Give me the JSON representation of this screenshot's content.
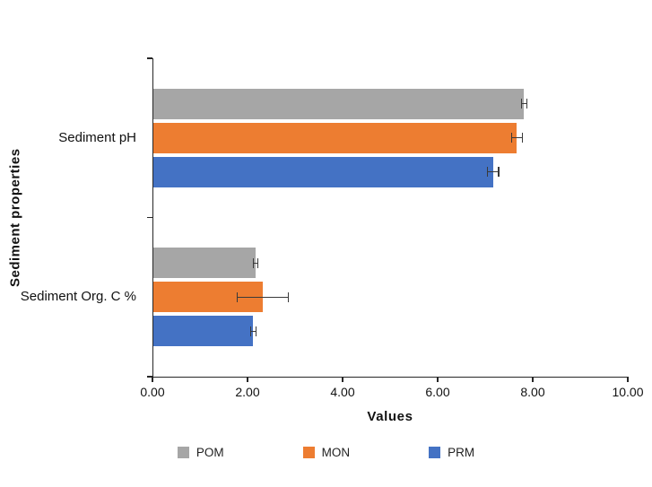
{
  "chart_data": {
    "type": "bar",
    "orientation": "horizontal",
    "title": "",
    "xlabel": "Values",
    "ylabel": "Sediment properties",
    "categories": [
      "Sediment pH",
      "Sediment Org. C %"
    ],
    "series": [
      {
        "name": "POM",
        "color": "#a6a6a6",
        "values": [
          7.8,
          2.15
        ],
        "errors": [
          0.07,
          0.06
        ]
      },
      {
        "name": "MON",
        "color": "#ed7d31",
        "values": [
          7.65,
          2.3
        ],
        "errors": [
          0.13,
          0.55
        ]
      },
      {
        "name": "PRM",
        "color": "#4472c4",
        "values": [
          7.15,
          2.1
        ],
        "errors": [
          0.13,
          0.07
        ]
      }
    ],
    "xlim": [
      0,
      10
    ],
    "xticks": [
      "0.00",
      "2.00",
      "4.00",
      "6.00",
      "8.00",
      "10.00"
    ],
    "grid": false,
    "legend_position": "bottom",
    "axis_color": "#262626"
  }
}
